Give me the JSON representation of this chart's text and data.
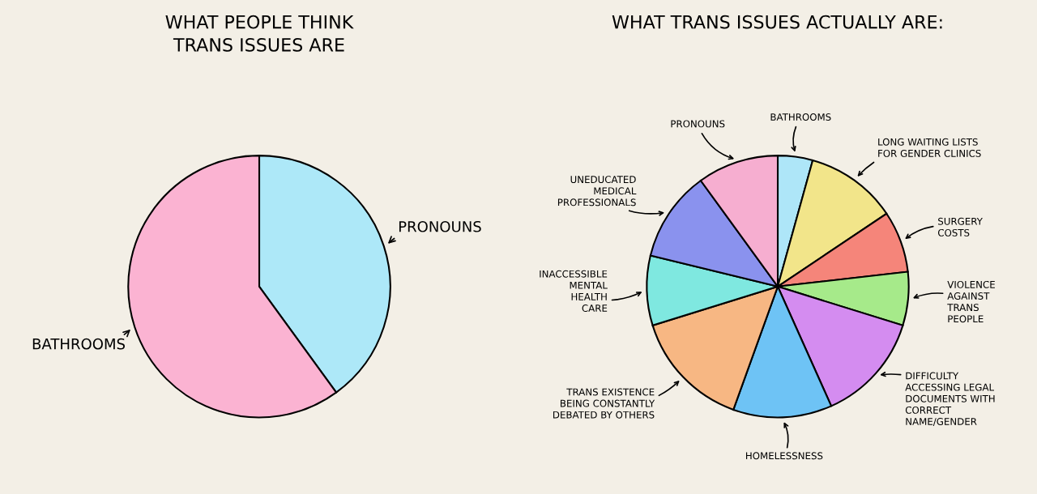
{
  "chart_data": [
    {
      "type": "pie",
      "title": "WHAT PEOPLE THINK\nTRANS ISSUES ARE",
      "categories": [
        "PRONOUNS",
        "BATHROOMS"
      ],
      "values": [
        40,
        60
      ],
      "colors": [
        "#ade8f8",
        "#fbb3d2"
      ]
    },
    {
      "type": "pie",
      "title": "WHAT TRANS ISSUES ACTUALLY ARE:",
      "categories": [
        "BATHROOMS",
        "LONG WAITING LISTS\nFOR GENDER CLINICS",
        "SURGERY\nCOSTS",
        "VIOLENCE\nAGAINST\nTRANS\nPEOPLE",
        "DIFFICULTY\nACCESSING LEGAL\nDOCUMENTS WITH\nCORRECT\nNAME/GENDER",
        "HOMELESSNESS",
        "TRANS EXISTENCE\nBEING CONSTANTLY\nDEBATED BY OTHERS",
        "INACCESSIBLE\nMENTAL\nHEALTH\nCARE",
        "UNEDUCATED\nMEDICAL\nPROFESSIONALS",
        "PRONOUNS"
      ],
      "values": [
        4.3,
        11.3,
        7.6,
        6.6,
        13.5,
        12.2,
        14.7,
        8.6,
        11.2,
        10.0
      ],
      "colors": [
        "#aee6f8",
        "#f2e58a",
        "#f5857a",
        "#a6ea8a",
        "#d48cf0",
        "#6ec3f5",
        "#f7b783",
        "#7fe8e0",
        "#8a92ee",
        "#f6aed0"
      ]
    }
  ]
}
